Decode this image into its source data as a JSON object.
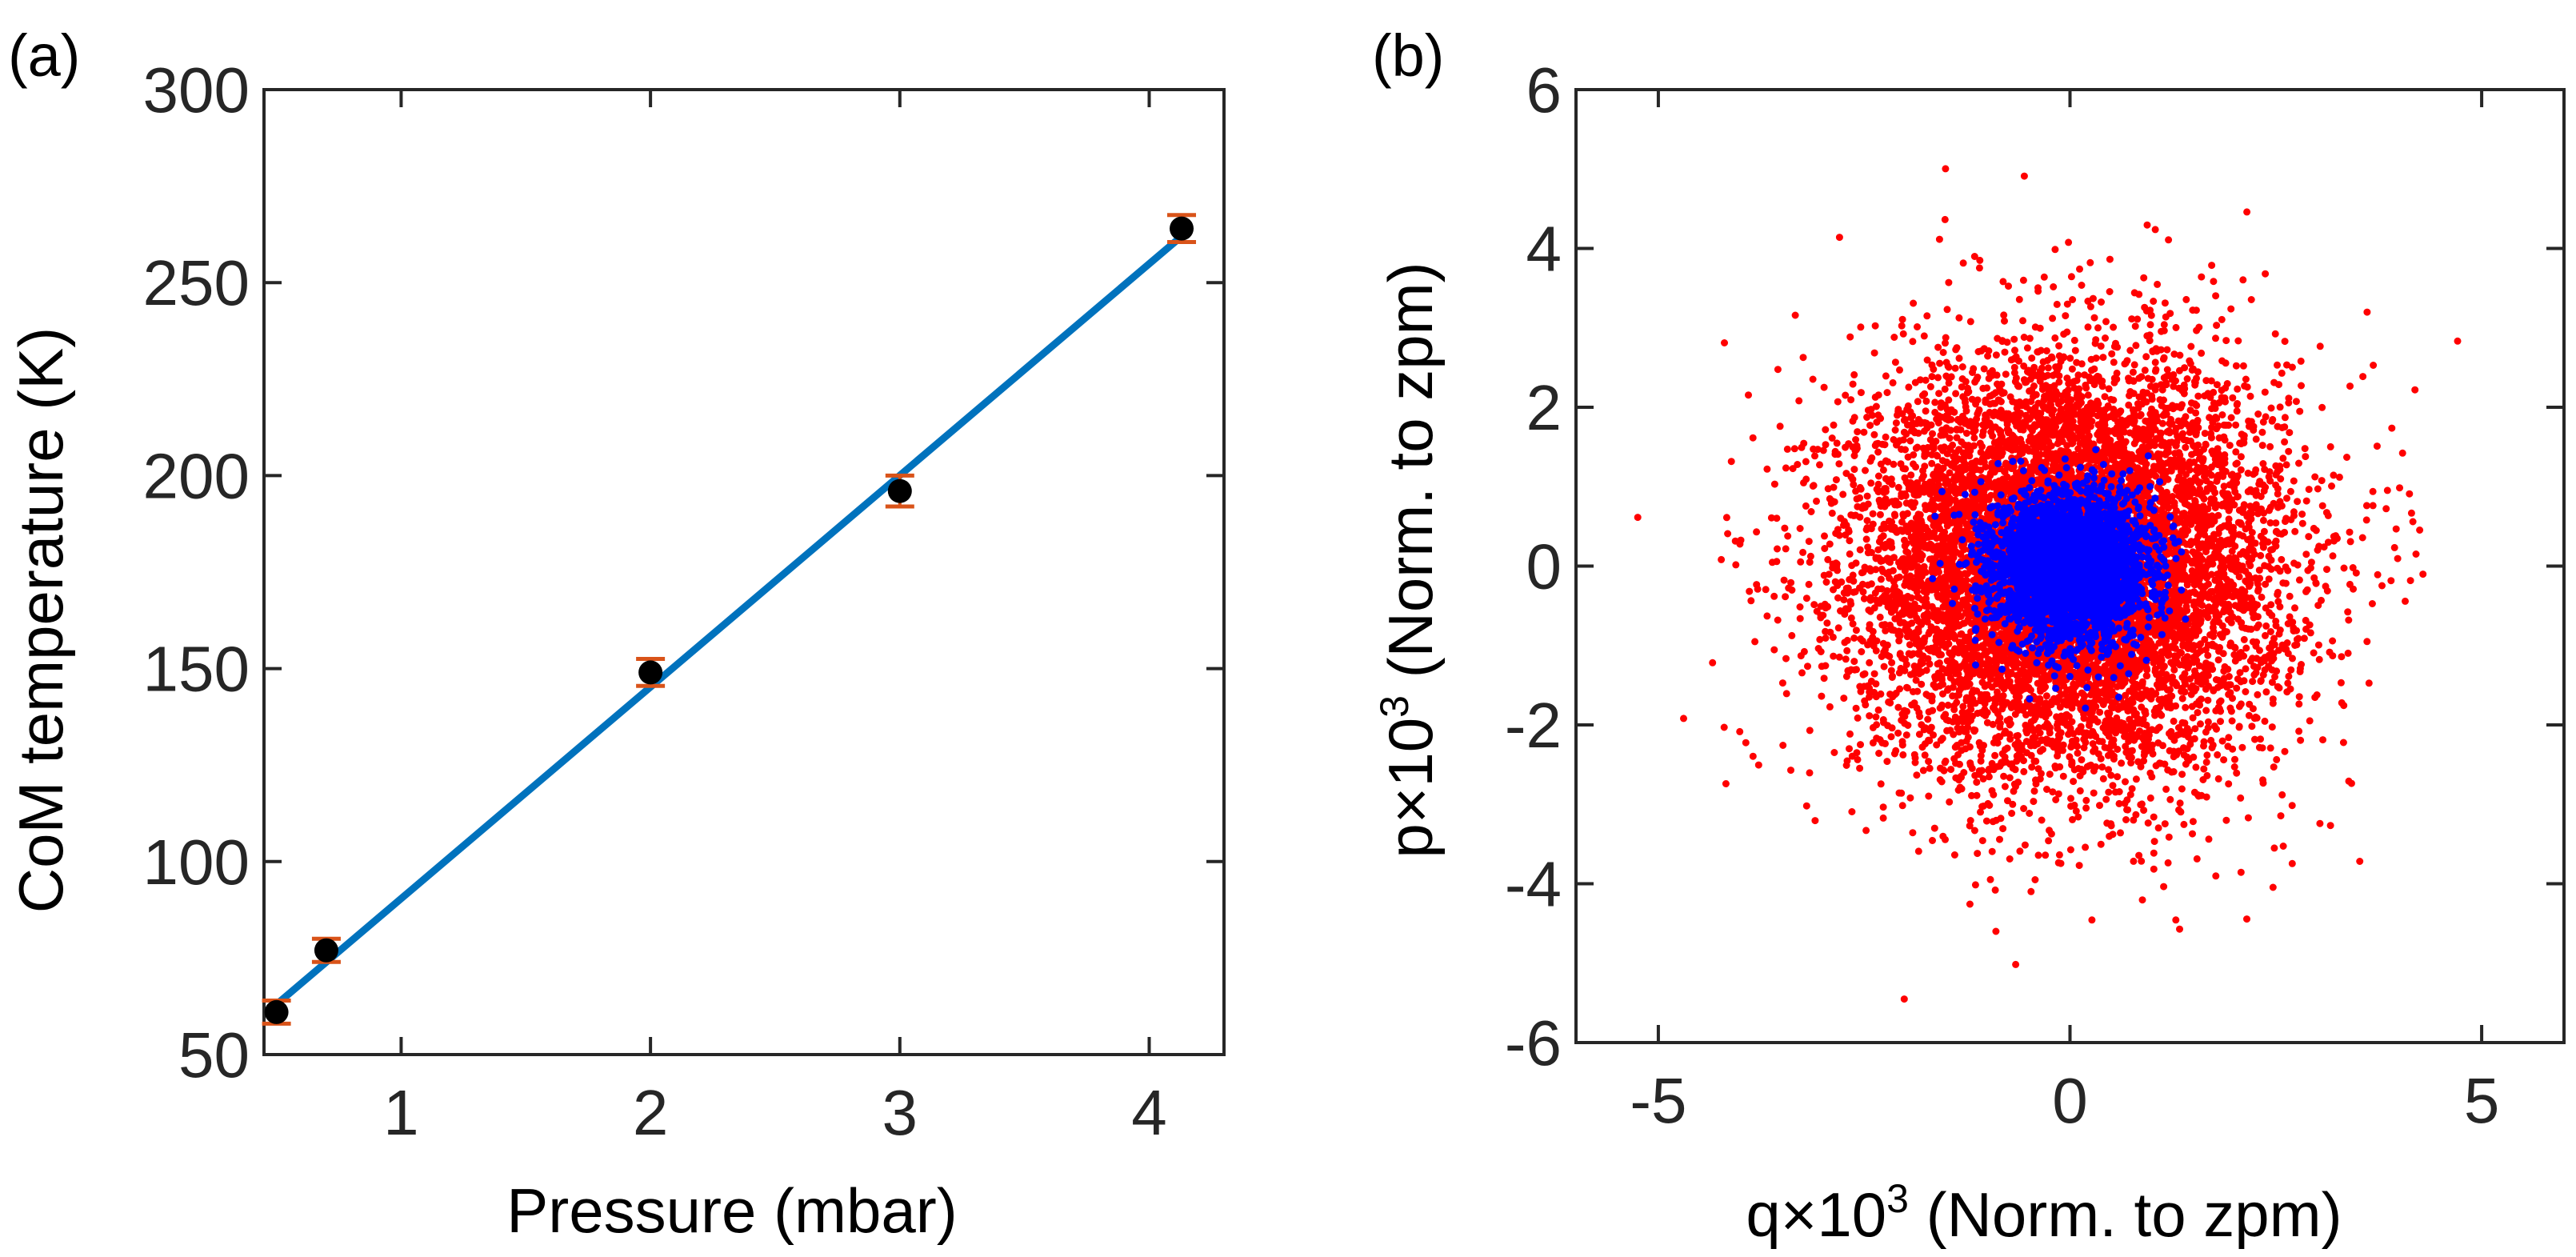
{
  "chart_data": [
    {
      "panel_label": "(a)",
      "type": "scatter",
      "xlabel": "Pressure (mbar)",
      "ylabel": "CoM temperature (K)",
      "xlim": [
        0.45,
        4.3
      ],
      "ylim": [
        50,
        300
      ],
      "xticks": [
        "1",
        "2",
        "3",
        "4"
      ],
      "yticks": [
        "50",
        "100",
        "150",
        "200",
        "250",
        "300"
      ],
      "xtick_values": [
        1,
        2,
        3,
        4
      ],
      "ytick_values": [
        50,
        100,
        150,
        200,
        250,
        300
      ],
      "points": [
        {
          "x": 0.5,
          "y": 61,
          "err": 3
        },
        {
          "x": 0.7,
          "y": 77,
          "err": 3
        },
        {
          "x": 2.0,
          "y": 149,
          "err": 3.5
        },
        {
          "x": 3.0,
          "y": 196,
          "err": 4
        },
        {
          "x": 4.13,
          "y": 264,
          "err": 3.5
        }
      ],
      "fit_line": {
        "x": [
          0.5,
          4.13
        ],
        "y": [
          63,
          262
        ]
      },
      "colors": {
        "points": "#000000",
        "errorbars": "#D95319",
        "fit": "#0072BD"
      }
    },
    {
      "panel_label": "(b)",
      "type": "scatter",
      "xlabel_parts": [
        "q×10",
        "3",
        " (Norm. to zpm)"
      ],
      "ylabel_parts": [
        "p×10",
        "3",
        " (Norm. to zpm)"
      ],
      "xlim": [
        -6,
        6
      ],
      "ylim": [
        -6,
        6
      ],
      "xticks": [
        "-5",
        "0",
        "5"
      ],
      "yticks": [
        "-6",
        "-4",
        "-2",
        "0",
        "2",
        "4",
        "6"
      ],
      "xtick_values": [
        -5,
        0,
        5
      ],
      "ytick_values": [
        -6,
        -4,
        -2,
        0,
        2,
        4,
        6
      ],
      "series": [
        {
          "name": "red",
          "color": "#FF0000",
          "distribution": "gaussian",
          "center": [
            0,
            0
          ],
          "sigma": 1.3,
          "count": 9000
        },
        {
          "name": "blue",
          "color": "#0000FF",
          "distribution": "gaussian",
          "center": [
            0,
            0
          ],
          "sigma": 0.45,
          "count": 3500
        }
      ]
    }
  ]
}
